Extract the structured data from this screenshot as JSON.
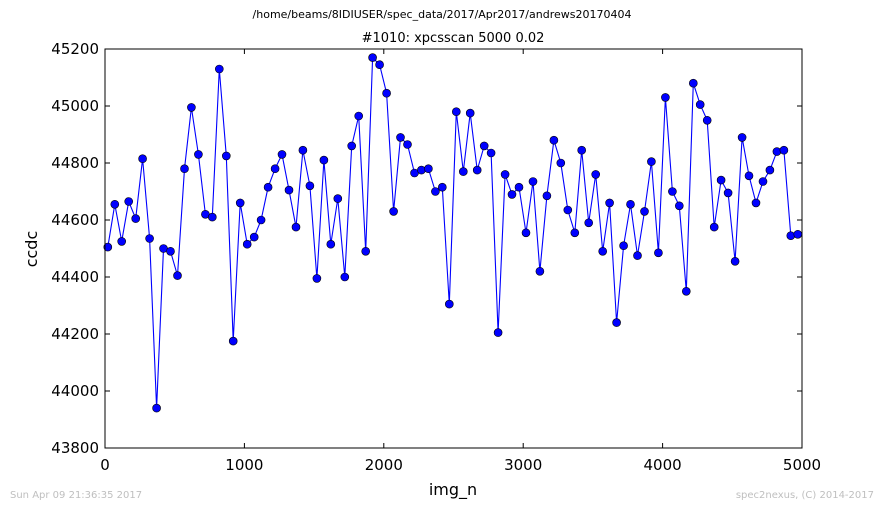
{
  "header": {
    "path": "/home/beams/8IDIUSER/spec_data/2017/Apr2017/andrews20170404",
    "title": "#1010: xpcsscan 5000 0.02"
  },
  "footer": {
    "timestamp": "Sun Apr 09 21:36:35 2017",
    "credit": "spec2nexus, (C) 2014-2017"
  },
  "chart_data": {
    "type": "line",
    "title": "#1010: xpcsscan 5000 0.02",
    "xlabel": "img_n",
    "ylabel": "ccdc",
    "xlim": [
      0,
      5000
    ],
    "ylim": [
      43800,
      45200
    ],
    "xticks": [
      0,
      1000,
      2000,
      3000,
      4000,
      5000
    ],
    "yticks": [
      43800,
      44000,
      44200,
      44400,
      44600,
      44800,
      45000,
      45200
    ],
    "line_color": "#0000ff",
    "marker_color": "#0000ff",
    "marker_edge": "#000000",
    "grid": false,
    "series": [
      {
        "x": [
          20,
          70,
          120,
          170,
          220,
          270,
          320,
          370,
          420,
          470,
          520,
          570,
          620,
          670,
          720,
          770,
          820,
          870,
          920,
          970,
          1020,
          1070,
          1120,
          1170,
          1220,
          1270,
          1320,
          1370,
          1420,
          1470,
          1520,
          1570,
          1620,
          1670,
          1720,
          1770,
          1820,
          1870,
          1920,
          1970,
          2020,
          2070,
          2120,
          2170,
          2220,
          2270,
          2320,
          2370,
          2420,
          2470,
          2520,
          2570,
          2620,
          2670,
          2720,
          2770,
          2820,
          2870,
          2920,
          2970,
          3020,
          3070,
          3120,
          3170,
          3220,
          3270,
          3320,
          3370,
          3420,
          3470,
          3520,
          3570,
          3620,
          3670,
          3720,
          3770,
          3820,
          3870,
          3920,
          3970,
          4020,
          4070,
          4120,
          4170,
          4220,
          4270,
          4320,
          4370,
          4420,
          4470,
          4520,
          4570,
          4620,
          4670,
          4720,
          4770,
          4820,
          4870,
          4920,
          4970
        ],
        "y": [
          44505,
          44655,
          44525,
          44665,
          44605,
          44815,
          44535,
          43940,
          44500,
          44490,
          44405,
          44780,
          44995,
          44830,
          44620,
          44610,
          45130,
          44825,
          44175,
          44660,
          44515,
          44540,
          44600,
          44715,
          44780,
          44830,
          44705,
          44575,
          44845,
          44720,
          44395,
          44810,
          44515,
          44675,
          44400,
          44860,
          44965,
          44490,
          45170,
          45145,
          45045,
          44630,
          44890,
          44865,
          44765,
          44775,
          44780,
          44700,
          44715,
          44305,
          44980,
          44770,
          44975,
          44775,
          44860,
          44835,
          44205,
          44760,
          44690,
          44715,
          44555,
          44735,
          44420,
          44685,
          44880,
          44800,
          44635,
          44555,
          44845,
          44590,
          44760,
          44490,
          44660,
          44240,
          44510,
          44655,
          44475,
          44630,
          44805,
          44485,
          45030,
          44700,
          44650,
          44350,
          45080,
          45005,
          44950,
          44575,
          44740,
          44695,
          44455,
          44890,
          44755,
          44660,
          44735,
          44775,
          44840,
          44845,
          44545,
          44550
        ]
      }
    ]
  }
}
